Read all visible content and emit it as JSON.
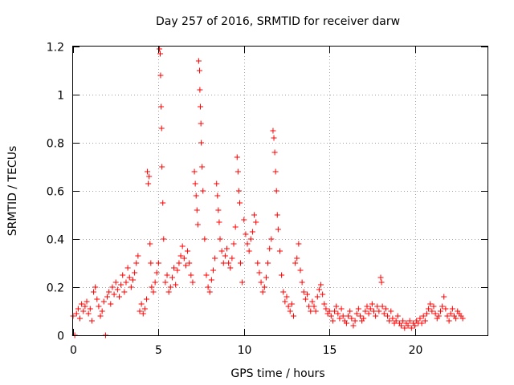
{
  "chart_data": {
    "type": "scatter",
    "title": "Day 257 of 2016, SRMTID for receiver darw",
    "xlabel": "GPS time / hours",
    "ylabel": "SRMTID / TECUs",
    "xlim": [
      0,
      24.25
    ],
    "ylim": [
      0,
      1.2
    ],
    "xticks": [
      0,
      5,
      10,
      15,
      20
    ],
    "xtick_labels": [
      "0",
      "5",
      "10",
      "15",
      "20"
    ],
    "yticks": [
      0,
      0.2,
      0.4,
      0.6,
      0.8,
      1.0,
      1.2
    ],
    "ytick_labels": [
      "0",
      "0.2",
      "0.4",
      "0.6",
      "0.8",
      "1",
      "1.2"
    ],
    "grid": true,
    "marker": "+",
    "color": "#ff0000",
    "series": [
      {
        "name": "darw",
        "points": [
          [
            0.0,
            0.08
          ],
          [
            0.1,
            0.0
          ],
          [
            0.2,
            0.09
          ],
          [
            0.3,
            0.11
          ],
          [
            0.4,
            0.07
          ],
          [
            0.5,
            0.13
          ],
          [
            0.6,
            0.1
          ],
          [
            0.7,
            0.12
          ],
          [
            0.8,
            0.14
          ],
          [
            0.9,
            0.09
          ],
          [
            1.0,
            0.11
          ],
          [
            1.1,
            0.06
          ],
          [
            1.2,
            0.18
          ],
          [
            1.3,
            0.2
          ],
          [
            1.4,
            0.15
          ],
          [
            1.5,
            0.12
          ],
          [
            1.6,
            0.08
          ],
          [
            1.7,
            0.1
          ],
          [
            1.8,
            0.14
          ],
          [
            1.9,
            0.0
          ],
          [
            2.0,
            0.16
          ],
          [
            2.1,
            0.18
          ],
          [
            2.2,
            0.13
          ],
          [
            2.3,
            0.2
          ],
          [
            2.4,
            0.17
          ],
          [
            2.5,
            0.22
          ],
          [
            2.6,
            0.19
          ],
          [
            2.7,
            0.16
          ],
          [
            2.8,
            0.21
          ],
          [
            2.9,
            0.25
          ],
          [
            3.0,
            0.18
          ],
          [
            3.1,
            0.22
          ],
          [
            3.2,
            0.28
          ],
          [
            3.3,
            0.24
          ],
          [
            3.4,
            0.2
          ],
          [
            3.5,
            0.23
          ],
          [
            3.6,
            0.26
          ],
          [
            3.7,
            0.3
          ],
          [
            3.8,
            0.33
          ],
          [
            3.9,
            0.1
          ],
          [
            4.0,
            0.13
          ],
          [
            4.1,
            0.09
          ],
          [
            4.2,
            0.11
          ],
          [
            4.3,
            0.15
          ],
          [
            4.35,
            0.68
          ],
          [
            4.4,
            0.63
          ],
          [
            4.45,
            0.66
          ],
          [
            4.5,
            0.38
          ],
          [
            4.55,
            0.3
          ],
          [
            4.6,
            0.2
          ],
          [
            4.7,
            0.18
          ],
          [
            4.8,
            0.22
          ],
          [
            4.9,
            0.26
          ],
          [
            5.0,
            0.3
          ],
          [
            5.05,
            1.19
          ],
          [
            5.1,
            1.17
          ],
          [
            5.12,
            1.08
          ],
          [
            5.15,
            0.95
          ],
          [
            5.18,
            0.86
          ],
          [
            5.2,
            0.7
          ],
          [
            5.25,
            0.55
          ],
          [
            5.3,
            0.4
          ],
          [
            5.4,
            0.22
          ],
          [
            5.5,
            0.25
          ],
          [
            5.6,
            0.18
          ],
          [
            5.7,
            0.2
          ],
          [
            5.8,
            0.24
          ],
          [
            5.9,
            0.28
          ],
          [
            6.0,
            0.21
          ],
          [
            6.1,
            0.27
          ],
          [
            6.2,
            0.3
          ],
          [
            6.3,
            0.33
          ],
          [
            6.4,
            0.37
          ],
          [
            6.5,
            0.32
          ],
          [
            6.6,
            0.29
          ],
          [
            6.7,
            0.35
          ],
          [
            6.8,
            0.3
          ],
          [
            6.9,
            0.25
          ],
          [
            7.0,
            0.22
          ],
          [
            7.1,
            0.68
          ],
          [
            7.15,
            0.63
          ],
          [
            7.2,
            0.58
          ],
          [
            7.25,
            0.52
          ],
          [
            7.3,
            0.46
          ],
          [
            7.35,
            1.14
          ],
          [
            7.4,
            1.1
          ],
          [
            7.42,
            1.02
          ],
          [
            7.45,
            0.95
          ],
          [
            7.48,
            0.88
          ],
          [
            7.5,
            0.8
          ],
          [
            7.55,
            0.7
          ],
          [
            7.6,
            0.6
          ],
          [
            7.7,
            0.4
          ],
          [
            7.8,
            0.25
          ],
          [
            7.9,
            0.2
          ],
          [
            8.0,
            0.18
          ],
          [
            8.1,
            0.23
          ],
          [
            8.2,
            0.27
          ],
          [
            8.3,
            0.32
          ],
          [
            8.4,
            0.63
          ],
          [
            8.45,
            0.58
          ],
          [
            8.5,
            0.52
          ],
          [
            8.55,
            0.47
          ],
          [
            8.6,
            0.4
          ],
          [
            8.7,
            0.35
          ],
          [
            8.8,
            0.3
          ],
          [
            8.9,
            0.33
          ],
          [
            9.0,
            0.36
          ],
          [
            9.1,
            0.3
          ],
          [
            9.2,
            0.28
          ],
          [
            9.3,
            0.32
          ],
          [
            9.4,
            0.38
          ],
          [
            9.5,
            0.45
          ],
          [
            9.6,
            0.74
          ],
          [
            9.65,
            0.68
          ],
          [
            9.7,
            0.6
          ],
          [
            9.75,
            0.55
          ],
          [
            9.8,
            0.3
          ],
          [
            9.9,
            0.22
          ],
          [
            10.0,
            0.48
          ],
          [
            10.1,
            0.42
          ],
          [
            10.2,
            0.38
          ],
          [
            10.3,
            0.35
          ],
          [
            10.4,
            0.4
          ],
          [
            10.5,
            0.43
          ],
          [
            10.6,
            0.5
          ],
          [
            10.7,
            0.47
          ],
          [
            10.8,
            0.3
          ],
          [
            10.9,
            0.26
          ],
          [
            11.0,
            0.22
          ],
          [
            11.1,
            0.18
          ],
          [
            11.2,
            0.2
          ],
          [
            11.3,
            0.24
          ],
          [
            11.4,
            0.3
          ],
          [
            11.5,
            0.36
          ],
          [
            11.6,
            0.4
          ],
          [
            11.7,
            0.85
          ],
          [
            11.75,
            0.82
          ],
          [
            11.8,
            0.76
          ],
          [
            11.85,
            0.68
          ],
          [
            11.9,
            0.6
          ],
          [
            11.95,
            0.5
          ],
          [
            12.0,
            0.44
          ],
          [
            12.1,
            0.35
          ],
          [
            12.2,
            0.25
          ],
          [
            12.3,
            0.18
          ],
          [
            12.4,
            0.14
          ],
          [
            12.5,
            0.16
          ],
          [
            12.6,
            0.12
          ],
          [
            12.7,
            0.1
          ],
          [
            12.8,
            0.13
          ],
          [
            12.9,
            0.08
          ],
          [
            13.0,
            0.3
          ],
          [
            13.1,
            0.32
          ],
          [
            13.2,
            0.38
          ],
          [
            13.3,
            0.27
          ],
          [
            13.4,
            0.22
          ],
          [
            13.5,
            0.18
          ],
          [
            13.6,
            0.15
          ],
          [
            13.7,
            0.17
          ],
          [
            13.8,
            0.12
          ],
          [
            13.9,
            0.1
          ],
          [
            14.0,
            0.14
          ],
          [
            14.1,
            0.12
          ],
          [
            14.2,
            0.1
          ],
          [
            14.3,
            0.16
          ],
          [
            14.4,
            0.19
          ],
          [
            14.5,
            0.21
          ],
          [
            14.6,
            0.17
          ],
          [
            14.7,
            0.13
          ],
          [
            14.8,
            0.11
          ],
          [
            14.9,
            0.09
          ],
          [
            15.0,
            0.1
          ],
          [
            15.1,
            0.08
          ],
          [
            15.2,
            0.06
          ],
          [
            15.3,
            0.1
          ],
          [
            15.4,
            0.12
          ],
          [
            15.5,
            0.09
          ],
          [
            15.6,
            0.07
          ],
          [
            15.7,
            0.11
          ],
          [
            15.8,
            0.08
          ],
          [
            15.9,
            0.06
          ],
          [
            16.0,
            0.05
          ],
          [
            16.1,
            0.08
          ],
          [
            16.2,
            0.1
          ],
          [
            16.3,
            0.07
          ],
          [
            16.4,
            0.04
          ],
          [
            16.5,
            0.06
          ],
          [
            16.6,
            0.09
          ],
          [
            16.7,
            0.11
          ],
          [
            16.8,
            0.08
          ],
          [
            16.9,
            0.06
          ],
          [
            17.0,
            0.07
          ],
          [
            17.1,
            0.1
          ],
          [
            17.2,
            0.12
          ],
          [
            17.3,
            0.09
          ],
          [
            17.4,
            0.11
          ],
          [
            17.5,
            0.13
          ],
          [
            17.6,
            0.1
          ],
          [
            17.7,
            0.08
          ],
          [
            17.8,
            0.12
          ],
          [
            17.9,
            0.1
          ],
          [
            18.0,
            0.24
          ],
          [
            18.05,
            0.22
          ],
          [
            18.1,
            0.12
          ],
          [
            18.2,
            0.09
          ],
          [
            18.3,
            0.11
          ],
          [
            18.4,
            0.08
          ],
          [
            18.5,
            0.06
          ],
          [
            18.6,
            0.1
          ],
          [
            18.7,
            0.07
          ],
          [
            18.8,
            0.05
          ],
          [
            18.9,
            0.06
          ],
          [
            19.0,
            0.08
          ],
          [
            19.1,
            0.05
          ],
          [
            19.2,
            0.04
          ],
          [
            19.3,
            0.06
          ],
          [
            19.4,
            0.03
          ],
          [
            19.5,
            0.05
          ],
          [
            19.6,
            0.04
          ],
          [
            19.7,
            0.06
          ],
          [
            19.8,
            0.03
          ],
          [
            19.9,
            0.05
          ],
          [
            20.0,
            0.04
          ],
          [
            20.1,
            0.06
          ],
          [
            20.2,
            0.05
          ],
          [
            20.3,
            0.07
          ],
          [
            20.4,
            0.05
          ],
          [
            20.5,
            0.08
          ],
          [
            20.6,
            0.06
          ],
          [
            20.7,
            0.09
          ],
          [
            20.8,
            0.11
          ],
          [
            20.9,
            0.13
          ],
          [
            21.0,
            0.1
          ],
          [
            21.1,
            0.12
          ],
          [
            21.2,
            0.09
          ],
          [
            21.3,
            0.07
          ],
          [
            21.4,
            0.08
          ],
          [
            21.5,
            0.1
          ],
          [
            21.6,
            0.12
          ],
          [
            21.7,
            0.16
          ],
          [
            21.8,
            0.11
          ],
          [
            21.9,
            0.08
          ],
          [
            22.0,
            0.06
          ],
          [
            22.1,
            0.09
          ],
          [
            22.2,
            0.11
          ],
          [
            22.3,
            0.08
          ],
          [
            22.4,
            0.07
          ],
          [
            22.5,
            0.1
          ],
          [
            22.6,
            0.09
          ],
          [
            22.7,
            0.08
          ],
          [
            22.8,
            0.07
          ]
        ]
      }
    ]
  }
}
